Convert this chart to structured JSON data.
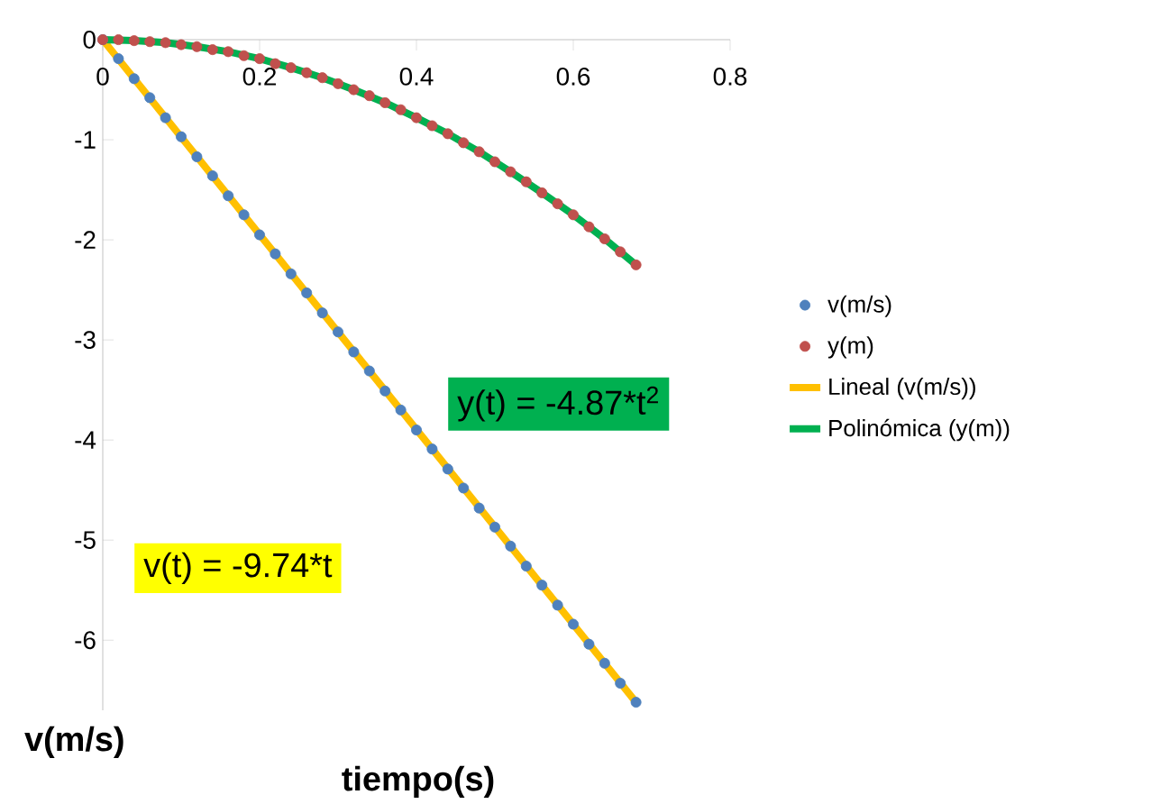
{
  "chart_data": {
    "type": "scatter",
    "xlabel": "tiempo(s)",
    "ylabel": "v(m/s)",
    "xlim": [
      0,
      0.8
    ],
    "ylim": [
      -6.7,
      0
    ],
    "xticks": [
      0,
      0.2,
      0.4,
      0.6,
      0.8
    ],
    "yticks": [
      -6,
      -5,
      -4,
      -3,
      -2,
      -1,
      0
    ],
    "grid": false,
    "legend": "right",
    "x": [
      0,
      0.02,
      0.04,
      0.06,
      0.08,
      0.1,
      0.12,
      0.14,
      0.16,
      0.18,
      0.2,
      0.22,
      0.24,
      0.26,
      0.28,
      0.3,
      0.32,
      0.34,
      0.36,
      0.38,
      0.4,
      0.42,
      0.44,
      0.46,
      0.48,
      0.5,
      0.52,
      0.54,
      0.56,
      0.58,
      0.6,
      0.62,
      0.64,
      0.66,
      0.68
    ],
    "series": [
      {
        "name": "v(m/s)",
        "marker": "circle",
        "color": "#4f81bd",
        "values": [
          0,
          -0.19,
          -0.39,
          -0.58,
          -0.78,
          -0.97,
          -1.17,
          -1.36,
          -1.56,
          -1.75,
          -1.95,
          -2.14,
          -2.34,
          -2.53,
          -2.73,
          -2.92,
          -3.12,
          -3.31,
          -3.51,
          -3.7,
          -3.9,
          -4.09,
          -4.29,
          -4.48,
          -4.68,
          -4.87,
          -5.06,
          -5.26,
          -5.45,
          -5.65,
          -5.84,
          -6.04,
          -6.23,
          -6.43,
          -6.62
        ]
      },
      {
        "name": "y(m)",
        "marker": "circle",
        "color": "#c0504d",
        "values": [
          0,
          0,
          -0.01,
          -0.02,
          -0.03,
          -0.05,
          -0.07,
          -0.1,
          -0.12,
          -0.16,
          -0.19,
          -0.24,
          -0.28,
          -0.33,
          -0.38,
          -0.44,
          -0.5,
          -0.56,
          -0.63,
          -0.7,
          -0.78,
          -0.86,
          -0.94,
          -1.03,
          -1.12,
          -1.22,
          -1.32,
          -1.42,
          -1.53,
          -1.64,
          -1.75,
          -1.87,
          -1.99,
          -2.12,
          -2.25
        ]
      },
      {
        "name": "Lineal (v(m/s))",
        "type": "line",
        "marker": "none",
        "color": "#ffc000",
        "x": [
          0,
          0.68
        ],
        "values": [
          0,
          -6.62
        ]
      },
      {
        "name": "Polinómica (y(m))",
        "type": "line",
        "marker": "none",
        "color": "#00b050",
        "x": [
          0,
          0.04,
          0.08,
          0.12,
          0.16,
          0.2,
          0.24,
          0.28,
          0.32,
          0.36,
          0.4,
          0.44,
          0.48,
          0.52,
          0.56,
          0.6,
          0.64,
          0.68
        ],
        "values": [
          0,
          -0.01,
          -0.03,
          -0.07,
          -0.12,
          -0.19,
          -0.28,
          -0.38,
          -0.5,
          -0.63,
          -0.78,
          -0.94,
          -1.12,
          -1.32,
          -1.53,
          -1.75,
          -1.99,
          -2.25
        ]
      }
    ],
    "annotations": [
      "v(t) = -9.74*t",
      "y(t) = -4.87*t$^{2}$"
    ]
  }
}
